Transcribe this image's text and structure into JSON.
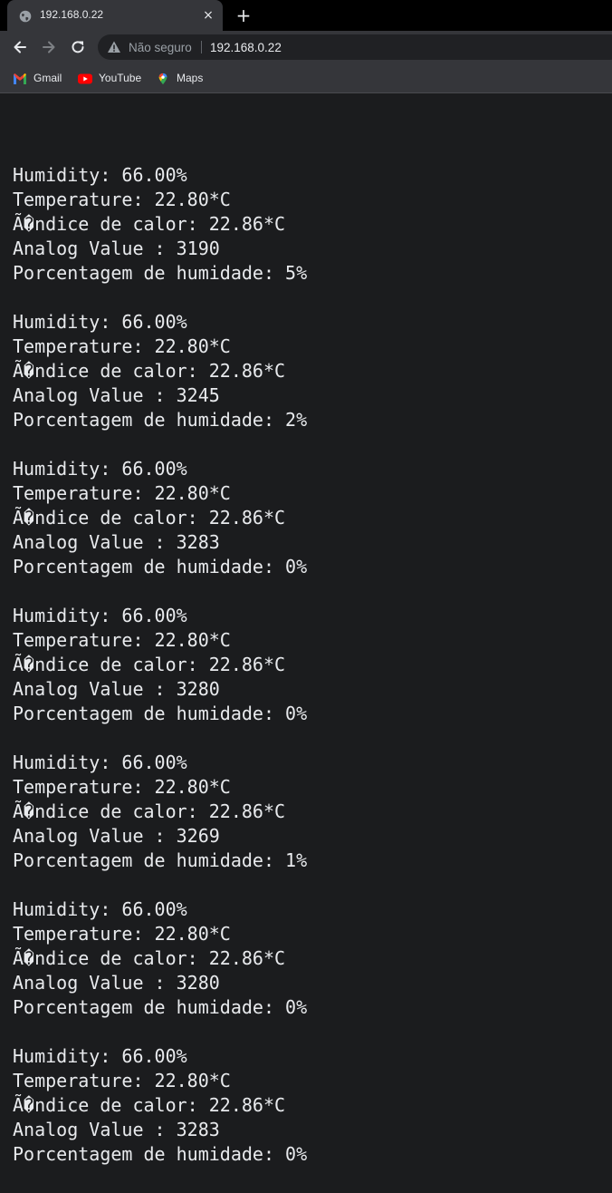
{
  "tab": {
    "title": "192.168.0.22",
    "favicon": "globe-icon",
    "close_glyph": "×",
    "new_tab_glyph": "+"
  },
  "toolbar": {
    "security_label": "Não seguro",
    "url": "192.168.0.22"
  },
  "bookmarks": [
    {
      "label": "Gmail",
      "icon": "gmail-icon"
    },
    {
      "label": "YouTube",
      "icon": "youtube-icon"
    },
    {
      "label": "Maps",
      "icon": "maps-icon"
    }
  ],
  "readings": [
    {
      "humidity": "Humidity: 66.00%",
      "temperature": "Temperature: 22.80*C",
      "heat_index": "Ã�ndice de calor: 22.86*C",
      "analog": "Analog Value : 3190",
      "soil": "Porcentagem de humidade: 5%"
    },
    {
      "humidity": "Humidity: 66.00%",
      "temperature": "Temperature: 22.80*C",
      "heat_index": "Ã�ndice de calor: 22.86*C",
      "analog": "Analog Value : 3245",
      "soil": "Porcentagem de humidade: 2%"
    },
    {
      "humidity": "Humidity: 66.00%",
      "temperature": "Temperature: 22.80*C",
      "heat_index": "Ã�ndice de calor: 22.86*C",
      "analog": "Analog Value : 3283",
      "soil": "Porcentagem de humidade: 0%"
    },
    {
      "humidity": "Humidity: 66.00%",
      "temperature": "Temperature: 22.80*C",
      "heat_index": "Ã�ndice de calor: 22.86*C",
      "analog": "Analog Value : 3280",
      "soil": "Porcentagem de humidade: 0%"
    },
    {
      "humidity": "Humidity: 66.00%",
      "temperature": "Temperature: 22.80*C",
      "heat_index": "Ã�ndice de calor: 22.86*C",
      "analog": "Analog Value : 3269",
      "soil": "Porcentagem de humidade: 1%"
    },
    {
      "humidity": "Humidity: 66.00%",
      "temperature": "Temperature: 22.80*C",
      "heat_index": "Ã�ndice de calor: 22.86*C",
      "analog": "Analog Value : 3280",
      "soil": "Porcentagem de humidade: 0%"
    },
    {
      "humidity": "Humidity: 66.00%",
      "temperature": "Temperature: 22.80*C",
      "heat_index": "Ã�ndice de calor: 22.86*C",
      "analog": "Analog Value : 3283",
      "soil": "Porcentagem de humidade: 0%"
    }
  ],
  "colors": {
    "page_background": "#1b1c1e",
    "text": "#e8eaed",
    "toolbar": "#35363a",
    "tabstrip": "#000000"
  }
}
